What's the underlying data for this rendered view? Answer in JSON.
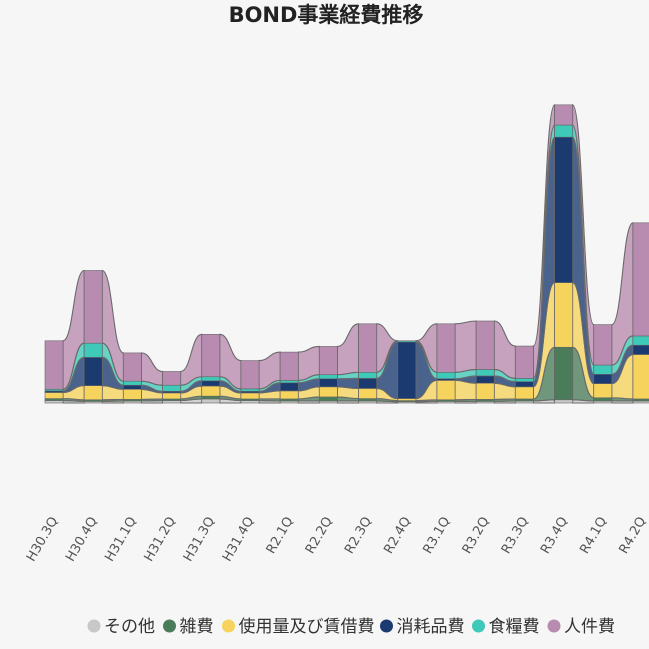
{
  "chart_data": {
    "type": "bar",
    "title": "BOND事業経費推移",
    "xlabel": "",
    "ylabel": "",
    "categories": [
      "H30.3Q",
      "H30.4Q",
      "H31.1Q",
      "H31.2Q",
      "H31.3Q",
      "H31.4Q",
      "R2.1Q",
      "R2.2Q",
      "R2.3Q",
      "R2.4Q",
      "R3.1Q",
      "R3.2Q",
      "R3.3Q",
      "R3.4Q",
      "R4.1Q",
      "R4.2Q"
    ],
    "stacked": true,
    "series": [
      {
        "name": "その他",
        "color": "#c8c8c8",
        "values": [
          0.6,
          0.4,
          0.5,
          0.6,
          1.0,
          0.6,
          0.5,
          0.5,
          0.5,
          0.3,
          0.4,
          0.4,
          0.5,
          0.8,
          0.5,
          0.5
        ]
      },
      {
        "name": "雑費",
        "color": "#4a7c59",
        "values": [
          0.5,
          0.4,
          0.4,
          0.4,
          0.7,
          0.4,
          0.5,
          1.0,
          0.6,
          0.3,
          0.4,
          0.5,
          0.5,
          13.0,
          0.8,
          0.5
        ]
      },
      {
        "name": "使用量及び賃借費",
        "color": "#f5d35c",
        "values": [
          1.5,
          3.5,
          2.5,
          1.5,
          2.5,
          1.5,
          2.0,
          2.5,
          2.5,
          0.5,
          4.8,
          4.0,
          3.0,
          16.0,
          3.5,
          11.0
        ]
      },
      {
        "name": "消耗品費",
        "color": "#1a3a70",
        "values": [
          0.4,
          7.0,
          1.0,
          0.4,
          1.3,
          0.4,
          2.0,
          2.0,
          2.5,
          14.0,
          0.4,
          1.8,
          1.3,
          36.0,
          2.3,
          2.3
        ]
      },
      {
        "name": "食糧費",
        "color": "#3ec9b8",
        "values": [
          0.4,
          3.5,
          1.0,
          1.5,
          1.0,
          0.6,
          0.6,
          1.0,
          1.5,
          0.3,
          1.6,
          1.6,
          0.8,
          3.0,
          2.3,
          2.3
        ]
      },
      {
        "name": "人件費",
        "color": "#b88bb0",
        "values": [
          12.0,
          18.0,
          7.0,
          3.4,
          10.5,
          7.0,
          7.0,
          7.0,
          12.0,
          0.0,
          12.0,
          12.0,
          8.0,
          5.0,
          10.0,
          28.0
        ]
      }
    ],
    "ylim": [
      0,
      75
    ],
    "legend": "bottom",
    "grid": false
  }
}
